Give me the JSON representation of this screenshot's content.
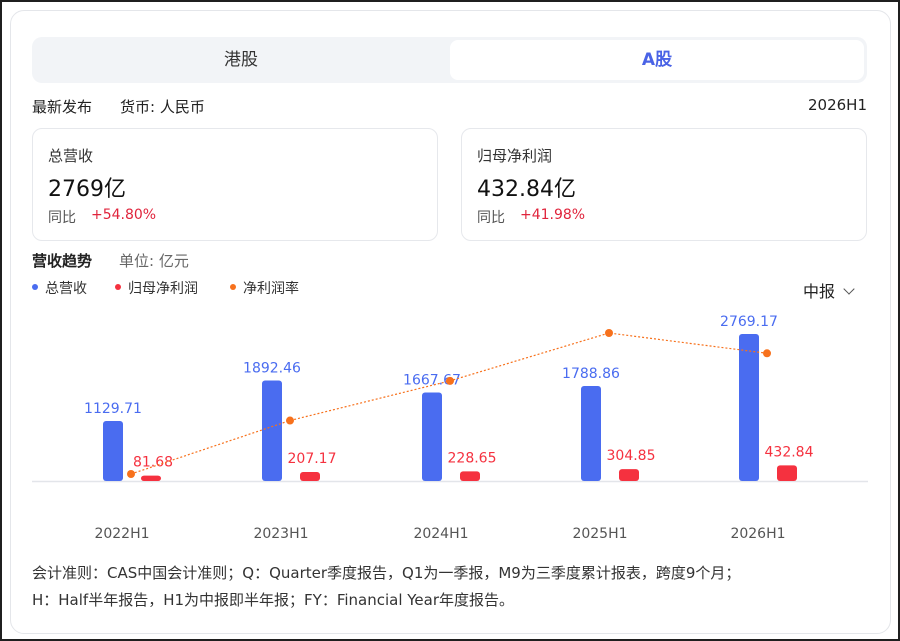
{
  "tabs": {
    "hk": "港股",
    "a": "A股"
  },
  "info": {
    "latest": "最新发布",
    "currency": "货币: 人民币",
    "period": "2026H1"
  },
  "metrics": {
    "revenue": {
      "label": "总营收",
      "value": "2769亿",
      "yoy_label": "同比",
      "yoy": "+54.80%"
    },
    "net_profit": {
      "label": "归母净利润",
      "value": "432.84亿",
      "yoy_label": "同比",
      "yoy": "+41.98%"
    }
  },
  "trend": {
    "title": "营收趋势",
    "unit": "单位: 亿元"
  },
  "period_select": {
    "value": "中报"
  },
  "colors": {
    "revenue": "#4a6cf0",
    "net_profit": "#f5313f",
    "margin": "#f7711c",
    "accent": "#4a63e6",
    "positive": "#e0243c"
  },
  "chart_data": {
    "type": "bar",
    "categories": [
      "2022H1",
      "2023H1",
      "2024H1",
      "2025H1",
      "2026H1"
    ],
    "series": [
      {
        "name": "总营收",
        "type": "bar",
        "values": [
          1129.71,
          1892.46,
          1667.67,
          1788.86,
          2769.17
        ],
        "labels": [
          "1129.71",
          "1892.46",
          "1667.67",
          "1788.86",
          "2769.17"
        ]
      },
      {
        "name": "归母净利润",
        "type": "bar",
        "values": [
          81.68,
          207.17,
          228.65,
          304.85,
          432.84
        ],
        "labels": [
          "81.68",
          "207.17",
          "228.65",
          "304.85",
          "432.84"
        ]
      },
      {
        "name": "净利润率",
        "type": "line",
        "values": [
          7.23,
          10.95,
          13.71,
          17.04,
          15.63
        ]
      }
    ],
    "legend_position": "top-left",
    "grid": false
  },
  "footnote": {
    "line1": "会计准则：CAS中国会计准则；Q：Quarter季度报告，Q1为一季报，M9为三季度累计报表，跨度9个月；",
    "line2": "H：Half半年报告，H1为中报即半年报；FY：Financial Year年度报告。"
  }
}
